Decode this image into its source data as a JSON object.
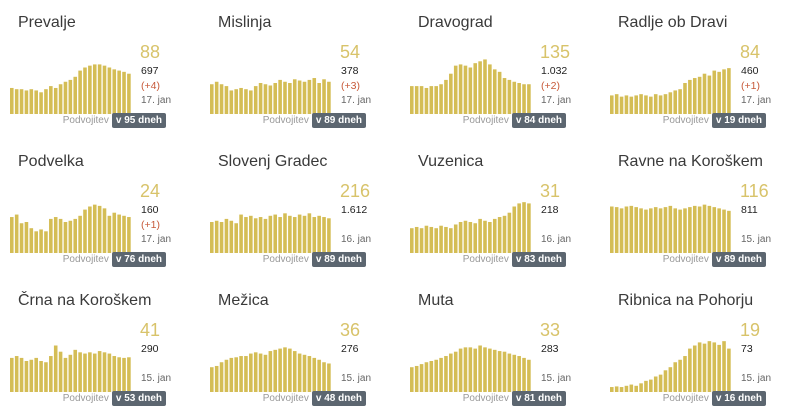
{
  "doubling_label": "Podvojitev",
  "chart_data": [
    {
      "type": "bar",
      "title": "Prevalje",
      "value": "88",
      "total": "697",
      "delta": "(+4)",
      "date": "17. jan",
      "doubling": "v 95 dneh",
      "values": [
        42,
        40,
        40,
        38,
        40,
        38,
        35,
        40,
        45,
        42,
        48,
        52,
        55,
        60,
        70,
        75,
        78,
        80,
        80,
        78,
        75,
        72,
        70,
        68,
        65
      ]
    },
    {
      "type": "bar",
      "title": "Mislinja",
      "value": "54",
      "total": "378",
      "delta": "(+3)",
      "date": "17. jan",
      "doubling": "v 89 dneh",
      "values": [
        48,
        52,
        48,
        45,
        38,
        40,
        42,
        40,
        38,
        45,
        50,
        48,
        46,
        50,
        55,
        52,
        50,
        56,
        54,
        52,
        55,
        58,
        50,
        56,
        52
      ]
    },
    {
      "type": "bar",
      "title": "Dravograd",
      "value": "135",
      "total": "1.032",
      "delta": "(+2)",
      "date": "17. jan",
      "doubling": "v 84 dneh",
      "values": [
        45,
        45,
        45,
        42,
        45,
        45,
        48,
        55,
        65,
        78,
        80,
        78,
        75,
        82,
        85,
        88,
        80,
        72,
        68,
        58,
        55,
        52,
        50,
        48,
        48
      ]
    },
    {
      "type": "bar",
      "title": "Radlje ob Dravi",
      "value": "84",
      "total": "460",
      "delta": "(+1)",
      "date": "17. jan",
      "doubling": "v 19 dneh",
      "values": [
        30,
        32,
        28,
        30,
        28,
        30,
        32,
        30,
        28,
        32,
        30,
        32,
        35,
        38,
        40,
        50,
        55,
        58,
        60,
        65,
        62,
        70,
        68,
        72,
        74
      ]
    },
    {
      "type": "bar",
      "title": "Podvelka",
      "value": "24",
      "total": "160",
      "delta": "(+1)",
      "date": "17. jan",
      "doubling": "v 76 dneh",
      "values": [
        58,
        62,
        48,
        50,
        40,
        35,
        38,
        35,
        55,
        58,
        55,
        50,
        52,
        55,
        60,
        70,
        75,
        78,
        76,
        72,
        60,
        65,
        62,
        60,
        58
      ]
    },
    {
      "type": "bar",
      "title": "Slovenj Gradec",
      "value": "216",
      "total": "1.612",
      "delta": "",
      "date": "16. jan",
      "doubling": "v 89 dneh",
      "values": [
        50,
        52,
        50,
        55,
        52,
        48,
        62,
        58,
        60,
        56,
        58,
        55,
        60,
        62,
        58,
        64,
        60,
        58,
        62,
        60,
        64,
        58,
        60,
        58,
        56
      ]
    },
    {
      "type": "bar",
      "title": "Vuzenica",
      "value": "31",
      "total": "218",
      "delta": "",
      "date": "16. jan",
      "doubling": "v 83 dneh",
      "values": [
        40,
        42,
        40,
        44,
        42,
        40,
        44,
        42,
        40,
        46,
        50,
        52,
        50,
        48,
        55,
        52,
        50,
        55,
        58,
        60,
        65,
        75,
        80,
        82,
        80
      ]
    },
    {
      "type": "bar",
      "title": "Ravne na Koroškem",
      "value": "116",
      "total": "811",
      "delta": "",
      "date": "15. jan",
      "doubling": "v 89 dneh",
      "values": [
        75,
        74,
        72,
        75,
        76,
        74,
        72,
        70,
        72,
        74,
        72,
        74,
        76,
        72,
        70,
        72,
        74,
        76,
        75,
        78,
        76,
        74,
        72,
        70,
        68
      ]
    },
    {
      "type": "bar",
      "title": "Črna na Koroškem",
      "value": "41",
      "total": "290",
      "delta": "",
      "date": "15. jan",
      "doubling": "v 53 dneh",
      "values": [
        55,
        58,
        55,
        50,
        52,
        55,
        50,
        48,
        58,
        75,
        65,
        55,
        60,
        68,
        64,
        62,
        64,
        62,
        66,
        64,
        62,
        58,
        56,
        55,
        56
      ]
    },
    {
      "type": "bar",
      "title": "Mežica",
      "value": "36",
      "total": "276",
      "delta": "",
      "date": "15. jan",
      "doubling": "v 48 dneh",
      "values": [
        40,
        42,
        48,
        52,
        55,
        56,
        58,
        58,
        62,
        64,
        62,
        60,
        66,
        68,
        70,
        72,
        70,
        66,
        62,
        60,
        58,
        55,
        52,
        48,
        46
      ]
    },
    {
      "type": "bar",
      "title": "Muta",
      "value": "33",
      "total": "283",
      "delta": "",
      "date": "15. jan",
      "doubling": "v 81 dneh",
      "values": [
        40,
        42,
        45,
        48,
        50,
        52,
        55,
        58,
        62,
        65,
        70,
        72,
        72,
        70,
        75,
        72,
        70,
        68,
        66,
        65,
        62,
        60,
        58,
        55,
        52
      ]
    },
    {
      "type": "bar",
      "title": "Ribnica na Pohorju",
      "value": "19",
      "total": "73",
      "delta": "",
      "date": "15. jan",
      "doubling": "v 16 dneh",
      "values": [
        8,
        9,
        8,
        10,
        12,
        10,
        14,
        18,
        20,
        25,
        28,
        35,
        40,
        48,
        52,
        58,
        70,
        75,
        80,
        78,
        82,
        80,
        76,
        82,
        70
      ]
    }
  ]
}
